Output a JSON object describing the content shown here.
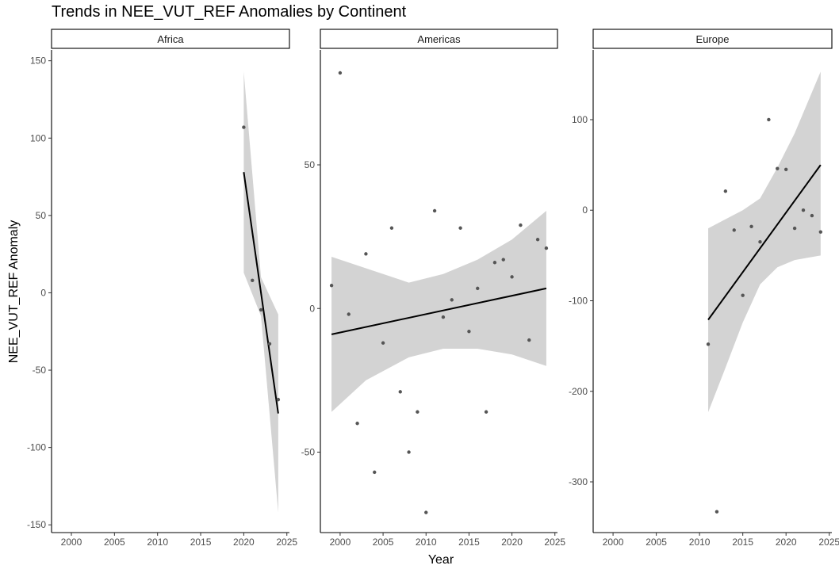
{
  "title": "Trends in NEE_VUT_REF Anomalies by Continent",
  "xlabel": "Year",
  "ylabel": "NEE_VUT_REF Anomaly",
  "colors": {
    "point": "#555555",
    "line": "#000000",
    "ribbon": "#d3d3d3",
    "axis": "#000000",
    "tick_text": "#4d4d4d"
  },
  "chart_data": [
    {
      "type": "scatter",
      "facet": "Africa",
      "xlim": [
        1997.7,
        2025.3
      ],
      "ylim": [
        -155,
        157
      ],
      "x_ticks": [
        2000,
        2005,
        2010,
        2015,
        2020,
        2025
      ],
      "y_ticks": [
        -150,
        -100,
        -50,
        0,
        50,
        100,
        150
      ],
      "points": [
        {
          "x": 2020,
          "y": 107
        },
        {
          "x": 2021,
          "y": 8
        },
        {
          "x": 2022,
          "y": -11
        },
        {
          "x": 2023,
          "y": -33
        },
        {
          "x": 2024,
          "y": -69
        }
      ],
      "trend": {
        "x": [
          2020,
          2024
        ],
        "y": [
          78,
          -78
        ]
      },
      "ribbon": [
        {
          "x": 2020,
          "lower": 13,
          "upper": 143
        },
        {
          "x": 2022,
          "lower": -15,
          "upper": 10
        },
        {
          "x": 2024,
          "lower": -142,
          "upper": -14
        }
      ]
    },
    {
      "type": "scatter",
      "facet": "Americas",
      "xlim": [
        1997.7,
        2025.3
      ],
      "ylim": [
        -78,
        90
      ],
      "x_ticks": [
        2000,
        2005,
        2010,
        2015,
        2020,
        2025
      ],
      "y_ticks": [
        -50,
        0,
        50
      ],
      "points": [
        {
          "x": 1999,
          "y": 8
        },
        {
          "x": 2000,
          "y": 82
        },
        {
          "x": 2001,
          "y": -2
        },
        {
          "x": 2002,
          "y": -40
        },
        {
          "x": 2003,
          "y": 19
        },
        {
          "x": 2004,
          "y": -57
        },
        {
          "x": 2005,
          "y": -12
        },
        {
          "x": 2006,
          "y": 28
        },
        {
          "x": 2007,
          "y": -29
        },
        {
          "x": 2008,
          "y": -50
        },
        {
          "x": 2009,
          "y": -36
        },
        {
          "x": 2010,
          "y": -71
        },
        {
          "x": 2011,
          "y": 34
        },
        {
          "x": 2012,
          "y": -3
        },
        {
          "x": 2013,
          "y": 3
        },
        {
          "x": 2014,
          "y": 28
        },
        {
          "x": 2015,
          "y": -8
        },
        {
          "x": 2016,
          "y": 7
        },
        {
          "x": 2017,
          "y": -36
        },
        {
          "x": 2018,
          "y": 16
        },
        {
          "x": 2019,
          "y": 17
        },
        {
          "x": 2020,
          "y": 11
        },
        {
          "x": 2021,
          "y": 29
        },
        {
          "x": 2022,
          "y": -11
        },
        {
          "x": 2023,
          "y": 24
        },
        {
          "x": 2024,
          "y": 21
        }
      ],
      "trend": {
        "x": [
          1999,
          2024
        ],
        "y": [
          -9,
          7
        ]
      },
      "ribbon": [
        {
          "x": 1999,
          "lower": -36,
          "upper": 18
        },
        {
          "x": 2003,
          "lower": -25,
          "upper": 14
        },
        {
          "x": 2008,
          "lower": -17,
          "upper": 9
        },
        {
          "x": 2012,
          "lower": -14,
          "upper": 12
        },
        {
          "x": 2016,
          "lower": -14,
          "upper": 17
        },
        {
          "x": 2020,
          "lower": -16,
          "upper": 24
        },
        {
          "x": 2024,
          "lower": -20,
          "upper": 34
        }
      ]
    },
    {
      "type": "scatter",
      "facet": "Europe",
      "xlim": [
        1997.7,
        2025.3
      ],
      "ylim": [
        -356,
        177
      ],
      "x_ticks": [
        2000,
        2005,
        2010,
        2015,
        2020,
        2025
      ],
      "y_ticks": [
        -300,
        -200,
        -100,
        0,
        100
      ],
      "points": [
        {
          "x": 2011,
          "y": -148
        },
        {
          "x": 2012,
          "y": -333
        },
        {
          "x": 2013,
          "y": 21
        },
        {
          "x": 2014,
          "y": -22
        },
        {
          "x": 2015,
          "y": -94
        },
        {
          "x": 2016,
          "y": -18
        },
        {
          "x": 2017,
          "y": -35
        },
        {
          "x": 2018,
          "y": 100
        },
        {
          "x": 2019,
          "y": 46
        },
        {
          "x": 2020,
          "y": 45
        },
        {
          "x": 2021,
          "y": -20
        },
        {
          "x": 2022,
          "y": 0
        },
        {
          "x": 2023,
          "y": -6
        },
        {
          "x": 2024,
          "y": -24
        }
      ],
      "trend": {
        "x": [
          2011,
          2024
        ],
        "y": [
          -121,
          50
        ]
      },
      "ribbon": [
        {
          "x": 2011,
          "lower": -223,
          "upper": -20
        },
        {
          "x": 2013,
          "lower": -174,
          "upper": -10
        },
        {
          "x": 2015,
          "lower": -124,
          "upper": 0
        },
        {
          "x": 2017,
          "lower": -82,
          "upper": 13
        },
        {
          "x": 2019,
          "lower": -63,
          "upper": 47
        },
        {
          "x": 2021,
          "lower": -55,
          "upper": 85
        },
        {
          "x": 2024,
          "lower": -50,
          "upper": 153
        }
      ]
    }
  ]
}
